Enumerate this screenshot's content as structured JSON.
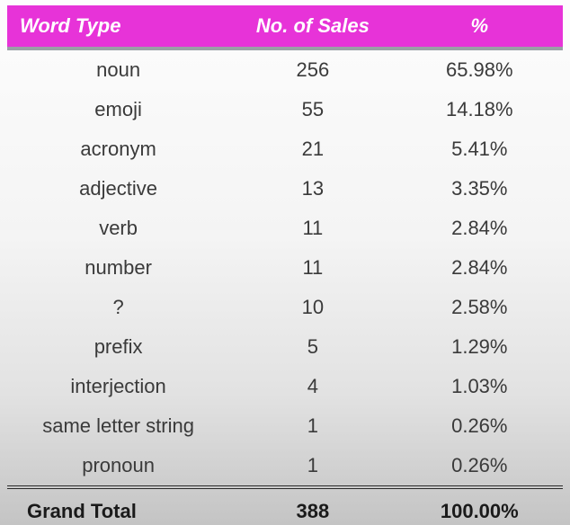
{
  "table": {
    "type": "table",
    "header_bg": "#e733d8",
    "header_text_color": "#ffffff",
    "header_font_style": "italic",
    "header_font_weight": "bold",
    "header_font_size_pt": 16,
    "body_font_size_pt": 16,
    "body_text_color": "#3a3a3a",
    "separator_color": "#9aa0a6",
    "total_border_style": "double",
    "total_border_color": "#2b2b2b",
    "background_gradient": [
      "#fdfdfd",
      "#f4f4f4",
      "#e2e2e2",
      "#c4c4c4"
    ],
    "columns": [
      {
        "key": "word_type",
        "label": "Word Type",
        "align": "center",
        "width_pct": 40
      },
      {
        "key": "sales",
        "label": "No. of Sales",
        "align": "center",
        "width_pct": 30
      },
      {
        "key": "pct",
        "label": "%",
        "align": "center",
        "width_pct": 30
      }
    ],
    "rows": [
      {
        "word_type": "noun",
        "sales": "256",
        "pct": "65.98%"
      },
      {
        "word_type": "emoji",
        "sales": "55",
        "pct": "14.18%"
      },
      {
        "word_type": "acronym",
        "sales": "21",
        "pct": "5.41%"
      },
      {
        "word_type": "adjective",
        "sales": "13",
        "pct": "3.35%"
      },
      {
        "word_type": "verb",
        "sales": "11",
        "pct": "2.84%"
      },
      {
        "word_type": "number",
        "sales": "11",
        "pct": "2.84%"
      },
      {
        "word_type": "?",
        "sales": "10",
        "pct": "2.58%"
      },
      {
        "word_type": "prefix",
        "sales": "5",
        "pct": "1.29%"
      },
      {
        "word_type": "interjection",
        "sales": "4",
        "pct": "1.03%"
      },
      {
        "word_type": "same letter string",
        "sales": "1",
        "pct": "0.26%"
      },
      {
        "word_type": "pronoun",
        "sales": "1",
        "pct": "0.26%"
      }
    ],
    "total": {
      "label": "Grand Total",
      "sales": "388",
      "pct": "100.00%"
    }
  }
}
